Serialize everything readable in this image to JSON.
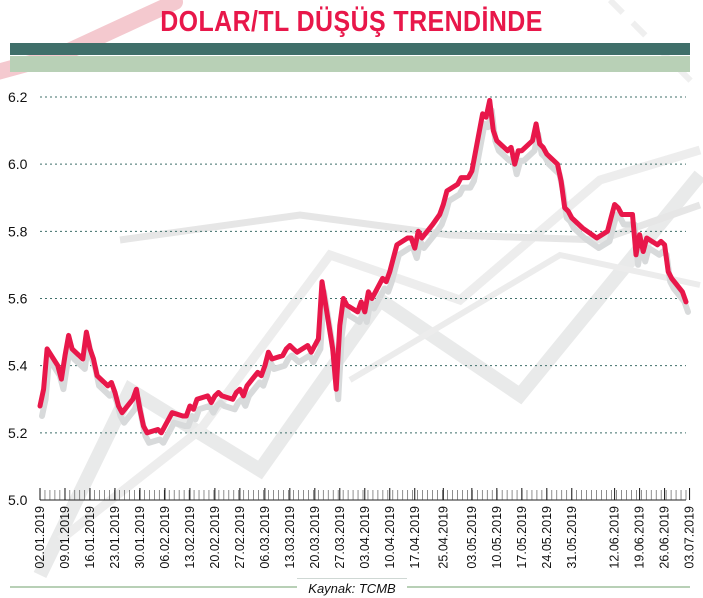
{
  "title": "DOLAR/TL DÜŞÜŞ TRENDİNDE",
  "source": "Kaynak: TCMB",
  "colors": {
    "title": "#e8174a",
    "line": "#e8174a",
    "band_dark": "#3f6f6a",
    "band_light": "#b8d0b6",
    "gridline": "#3f6f6a"
  },
  "chart_data": {
    "type": "line",
    "title": "DOLAR/TL DÜŞÜŞ TRENDİNDE",
    "xlabel": "",
    "ylabel": "",
    "ylim": [
      5.0,
      6.2
    ],
    "yticks": [
      "5.0",
      "5.2",
      "5.4",
      "5.6",
      "5.8",
      "6.0",
      "6.2"
    ],
    "grid": "horizontal dotted",
    "xtick_labels": [
      "02.01.2019",
      "09.01.2019",
      "16.01.2019",
      "23.01.2019",
      "30.01.2019",
      "06.02.2019",
      "13.02.2019",
      "20.02.2019",
      "27.02.2019",
      "06.03.2019",
      "13.03.2019",
      "20.03.2019",
      "27.03.2019",
      "03.04.2019",
      "10.04.2019",
      "17.04.2019",
      "25.04.2019",
      "03.05.2019",
      "10.05.2019",
      "17.05.2019",
      "24.05.2019",
      "31.05.2019",
      "12.06.2019",
      "19.06.2019",
      "26.06.2019",
      "03.07.2019"
    ],
    "series": [
      {
        "values": [
          {
            "x": "02.01.2019",
            "y": 5.28
          },
          {
            "x": "03.01.2019",
            "y": 5.33
          },
          {
            "x": "04.01.2019",
            "y": 5.45
          },
          {
            "x": "07.01.2019",
            "y": 5.4
          },
          {
            "x": "08.01.2019",
            "y": 5.36
          },
          {
            "x": "09.01.2019",
            "y": 5.43
          },
          {
            "x": "10.01.2019",
            "y": 5.49
          },
          {
            "x": "11.01.2019",
            "y": 5.45
          },
          {
            "x": "14.01.2019",
            "y": 5.42
          },
          {
            "x": "15.01.2019",
            "y": 5.5
          },
          {
            "x": "16.01.2019",
            "y": 5.45
          },
          {
            "x": "17.01.2019",
            "y": 5.42
          },
          {
            "x": "18.01.2019",
            "y": 5.37
          },
          {
            "x": "21.01.2019",
            "y": 5.34
          },
          {
            "x": "22.01.2019",
            "y": 5.35
          },
          {
            "x": "23.01.2019",
            "y": 5.32
          },
          {
            "x": "24.01.2019",
            "y": 5.28
          },
          {
            "x": "25.01.2019",
            "y": 5.26
          },
          {
            "x": "28.01.2019",
            "y": 5.3
          },
          {
            "x": "29.01.2019",
            "y": 5.33
          },
          {
            "x": "30.01.2019",
            "y": 5.27
          },
          {
            "x": "31.01.2019",
            "y": 5.22
          },
          {
            "x": "01.02.2019",
            "y": 5.2
          },
          {
            "x": "04.02.2019",
            "y": 5.21
          },
          {
            "x": "05.02.2019",
            "y": 5.2
          },
          {
            "x": "06.02.2019",
            "y": 5.22
          },
          {
            "x": "07.02.2019",
            "y": 5.24
          },
          {
            "x": "08.02.2019",
            "y": 5.26
          },
          {
            "x": "11.02.2019",
            "y": 5.25
          },
          {
            "x": "12.02.2019",
            "y": 5.25
          },
          {
            "x": "13.02.2019",
            "y": 5.28
          },
          {
            "x": "14.02.2019",
            "y": 5.27
          },
          {
            "x": "15.02.2019",
            "y": 5.3
          },
          {
            "x": "18.02.2019",
            "y": 5.31
          },
          {
            "x": "19.02.2019",
            "y": 5.29
          },
          {
            "x": "20.02.2019",
            "y": 5.31
          },
          {
            "x": "21.02.2019",
            "y": 5.32
          },
          {
            "x": "22.02.2019",
            "y": 5.31
          },
          {
            "x": "25.02.2019",
            "y": 5.3
          },
          {
            "x": "26.02.2019",
            "y": 5.32
          },
          {
            "x": "27.02.2019",
            "y": 5.33
          },
          {
            "x": "28.02.2019",
            "y": 5.31
          },
          {
            "x": "01.03.2019",
            "y": 5.34
          },
          {
            "x": "04.03.2019",
            "y": 5.38
          },
          {
            "x": "05.03.2019",
            "y": 5.37
          },
          {
            "x": "06.03.2019",
            "y": 5.4
          },
          {
            "x": "07.03.2019",
            "y": 5.44
          },
          {
            "x": "08.03.2019",
            "y": 5.42
          },
          {
            "x": "11.03.2019",
            "y": 5.43
          },
          {
            "x": "12.03.2019",
            "y": 5.45
          },
          {
            "x": "13.03.2019",
            "y": 5.46
          },
          {
            "x": "14.03.2019",
            "y": 5.45
          },
          {
            "x": "15.03.2019",
            "y": 5.44
          },
          {
            "x": "18.03.2019",
            "y": 5.46
          },
          {
            "x": "19.03.2019",
            "y": 5.44
          },
          {
            "x": "20.03.2019",
            "y": 5.46
          },
          {
            "x": "21.03.2019",
            "y": 5.48
          },
          {
            "x": "22.03.2019",
            "y": 5.65
          },
          {
            "x": "25.03.2019",
            "y": 5.45
          },
          {
            "x": "26.03.2019",
            "y": 5.33
          },
          {
            "x": "27.03.2019",
            "y": 5.52
          },
          {
            "x": "28.03.2019",
            "y": 5.6
          },
          {
            "x": "29.03.2019",
            "y": 5.58
          },
          {
            "x": "01.04.2019",
            "y": 5.56
          },
          {
            "x": "02.04.2019",
            "y": 5.59
          },
          {
            "x": "03.04.2019",
            "y": 5.56
          },
          {
            "x": "04.04.2019",
            "y": 5.62
          },
          {
            "x": "05.04.2019",
            "y": 5.6
          },
          {
            "x": "08.04.2019",
            "y": 5.66
          },
          {
            "x": "09.04.2019",
            "y": 5.65
          },
          {
            "x": "10.04.2019",
            "y": 5.68
          },
          {
            "x": "11.04.2019",
            "y": 5.72
          },
          {
            "x": "12.04.2019",
            "y": 5.76
          },
          {
            "x": "15.04.2019",
            "y": 5.78
          },
          {
            "x": "16.04.2019",
            "y": 5.78
          },
          {
            "x": "17.04.2019",
            "y": 5.75
          },
          {
            "x": "18.04.2019",
            "y": 5.8
          },
          {
            "x": "19.04.2019",
            "y": 5.78
          },
          {
            "x": "22.04.2019",
            "y": 5.82
          },
          {
            "x": "24.04.2019",
            "y": 5.85
          },
          {
            "x": "25.04.2019",
            "y": 5.88
          },
          {
            "x": "26.04.2019",
            "y": 5.92
          },
          {
            "x": "29.04.2019",
            "y": 5.94
          },
          {
            "x": "30.04.2019",
            "y": 5.96
          },
          {
            "x": "02.05.2019",
            "y": 5.96
          },
          {
            "x": "03.05.2019",
            "y": 5.98
          },
          {
            "x": "06.05.2019",
            "y": 6.15
          },
          {
            "x": "07.05.2019",
            "y": 6.14
          },
          {
            "x": "08.05.2019",
            "y": 6.19
          },
          {
            "x": "09.05.2019",
            "y": 6.1
          },
          {
            "x": "10.05.2019",
            "y": 6.07
          },
          {
            "x": "13.05.2019",
            "y": 6.04
          },
          {
            "x": "14.05.2019",
            "y": 6.05
          },
          {
            "x": "15.05.2019",
            "y": 6.0
          },
          {
            "x": "16.05.2019",
            "y": 6.04
          },
          {
            "x": "17.05.2019",
            "y": 6.04
          },
          {
            "x": "20.05.2019",
            "y": 6.07
          },
          {
            "x": "21.05.2019",
            "y": 6.12
          },
          {
            "x": "22.05.2019",
            "y": 6.06
          },
          {
            "x": "23.05.2019",
            "y": 6.05
          },
          {
            "x": "24.05.2019",
            "y": 6.03
          },
          {
            "x": "27.05.2019",
            "y": 6.0
          },
          {
            "x": "28.05.2019",
            "y": 5.95
          },
          {
            "x": "29.05.2019",
            "y": 5.87
          },
          {
            "x": "30.05.2019",
            "y": 5.86
          },
          {
            "x": "31.05.2019",
            "y": 5.84
          },
          {
            "x": "03.06.2019",
            "y": 5.81
          },
          {
            "x": "07.06.2019",
            "y": 5.78
          },
          {
            "x": "10.06.2019",
            "y": 5.8
          },
          {
            "x": "11.06.2019",
            "y": 5.84
          },
          {
            "x": "12.06.2019",
            "y": 5.88
          },
          {
            "x": "13.06.2019",
            "y": 5.87
          },
          {
            "x": "14.06.2019",
            "y": 5.85
          },
          {
            "x": "17.06.2019",
            "y": 5.85
          },
          {
            "x": "18.06.2019",
            "y": 5.73
          },
          {
            "x": "19.06.2019",
            "y": 5.79
          },
          {
            "x": "20.06.2019",
            "y": 5.74
          },
          {
            "x": "21.06.2019",
            "y": 5.78
          },
          {
            "x": "24.06.2019",
            "y": 5.76
          },
          {
            "x": "25.06.2019",
            "y": 5.77
          },
          {
            "x": "26.06.2019",
            "y": 5.76
          },
          {
            "x": "27.06.2019",
            "y": 5.68
          },
          {
            "x": "28.06.2019",
            "y": 5.66
          },
          {
            "x": "01.07.2019",
            "y": 5.62
          },
          {
            "x": "02.07.2019",
            "y": 5.59
          }
        ]
      }
    ]
  }
}
